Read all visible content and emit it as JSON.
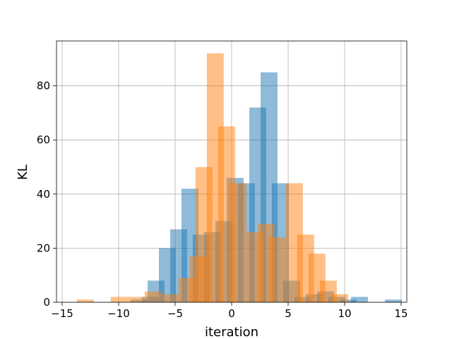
{
  "chart_data": {
    "type": "bar",
    "title": "",
    "xlabel": "iteration",
    "ylabel": "KL",
    "xlim": [
      -15.5,
      15.5
    ],
    "ylim": [
      0,
      96.6
    ],
    "grid": true,
    "bin_width": 1.5,
    "xticks": [
      -15,
      -10,
      -5,
      0,
      5,
      10,
      15
    ],
    "xtick_labels": [
      "−15",
      "−10",
      "−5",
      "0",
      "5",
      "10",
      "15"
    ],
    "yticks": [
      0,
      20,
      40,
      60,
      80
    ],
    "ytick_labels": [
      "0",
      "20",
      "40",
      "60",
      "80"
    ],
    "series": [
      {
        "color": "#1f77b4",
        "opacity": 0.5,
        "bins": [
          [
            -8.94,
            1
          ],
          [
            -7.94,
            2
          ],
          [
            -7.44,
            8
          ],
          [
            -6.44,
            20
          ],
          [
            -5.44,
            27
          ],
          [
            -4.44,
            42
          ],
          [
            -3.44,
            25
          ],
          [
            -2.44,
            26
          ],
          [
            -1.44,
            30
          ],
          [
            -0.44,
            46
          ],
          [
            0.56,
            44
          ],
          [
            1.56,
            72
          ],
          [
            2.56,
            85
          ],
          [
            3.56,
            44
          ],
          [
            4.56,
            8
          ],
          [
            5.56,
            2
          ],
          [
            6.56,
            3
          ],
          [
            7.56,
            4
          ],
          [
            8.56,
            2
          ],
          [
            9.56,
            1
          ],
          [
            10.56,
            2
          ],
          [
            13.56,
            1
          ]
        ]
      },
      {
        "color": "#ff7f0e",
        "opacity": 0.5,
        "bins": [
          [
            -13.7,
            1
          ],
          [
            -10.7,
            2
          ],
          [
            -9.2,
            2
          ],
          [
            -7.7,
            4
          ],
          [
            -6.2,
            3
          ],
          [
            -4.7,
            9
          ],
          [
            -3.7,
            17
          ],
          [
            -3.2,
            50
          ],
          [
            -2.2,
            92
          ],
          [
            -1.2,
            65
          ],
          [
            -0.2,
            44
          ],
          [
            1.3,
            26
          ],
          [
            2.3,
            29
          ],
          [
            3.3,
            24
          ],
          [
            4.8,
            44
          ],
          [
            5.8,
            25
          ],
          [
            6.8,
            18
          ],
          [
            7.8,
            8
          ],
          [
            8.8,
            3
          ]
        ]
      }
    ]
  }
}
